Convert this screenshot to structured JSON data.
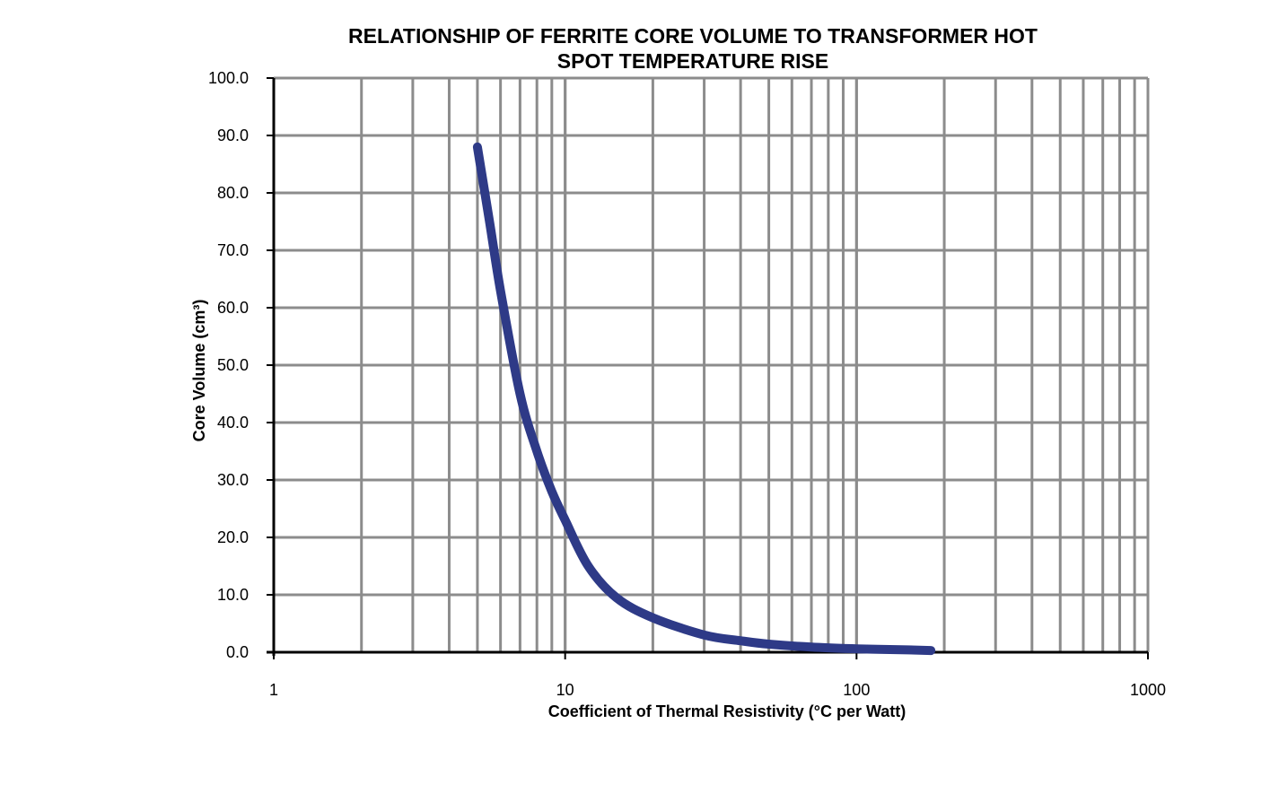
{
  "chart_data": {
    "type": "line",
    "title_lines": [
      "RELATIONSHIP OF FERRITE CORE VOLUME TO TRANSFORMER HOT",
      "SPOT TEMPERATURE RISE"
    ],
    "xlabel": "Coefficient of Thermal Resistivity (°C per Watt)",
    "ylabel": "Core Volume (cm³)",
    "x_scale": "log",
    "xlim": [
      1,
      1000
    ],
    "ylim": [
      0,
      100
    ],
    "x_tick_labels": [
      "1",
      "10",
      "100",
      "1000"
    ],
    "y_tick_labels": [
      "0.0",
      "10.0",
      "20.0",
      "30.0",
      "40.0",
      "50.0",
      "60.0",
      "70.0",
      "80.0",
      "90.0",
      "100.0"
    ],
    "grid": true,
    "legend": "none",
    "line_color": "#2e3a87",
    "series": [
      {
        "x": [
          5,
          5.5,
          6,
          7,
          8,
          9,
          10,
          12,
          15,
          20,
          30,
          40,
          50,
          70,
          100,
          150,
          180
        ],
        "y": [
          88,
          75,
          63,
          45,
          35,
          28,
          23,
          15,
          9.5,
          6,
          3,
          2,
          1.4,
          0.9,
          0.6,
          0.4,
          0.3
        ]
      }
    ]
  }
}
